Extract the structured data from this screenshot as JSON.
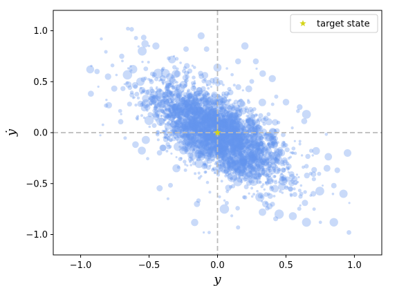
{
  "chart_data": {
    "type": "scatter",
    "xlabel": "y",
    "ylabel": "ẏ",
    "xlim": [
      -1.2,
      1.2
    ],
    "ylim": [
      -1.2,
      1.2
    ],
    "xticks": [
      -1.0,
      -0.5,
      0.0,
      0.5,
      1.0
    ],
    "xtick_labels": [
      "−1.0",
      "−0.5",
      "0.0",
      "0.5",
      "1.0"
    ],
    "yticks": [
      -1.0,
      -0.5,
      0.0,
      0.5,
      1.0
    ],
    "ytick_labels": [
      "−1.0",
      "−0.5",
      "0.0",
      "0.5",
      "1.0"
    ],
    "grid": false,
    "reference_lines": {
      "x": 0.0,
      "y": 0.0,
      "style": "dashed",
      "color": "#bbbbbb"
    },
    "legend_position": "top-right",
    "series": [
      {
        "kind": "point-cloud",
        "color": "#6495ED",
        "opacity": 0.35,
        "center": [
          0.0,
          0.0
        ],
        "approx_correlation": -0.65,
        "x_extent": [
          -0.95,
          1.0
        ],
        "y_extent": [
          -0.95,
          0.95
        ],
        "outlier_points": [
          {
            "x": -0.93,
            "y": 0.62
          },
          {
            "x": -0.88,
            "y": 0.6
          },
          {
            "x": -0.8,
            "y": 0.55
          },
          {
            "x": -0.7,
            "y": 0.75
          },
          {
            "x": -0.55,
            "y": 0.8
          },
          {
            "x": -0.45,
            "y": 0.85
          },
          {
            "x": -0.23,
            "y": 0.82
          },
          {
            "x": -0.12,
            "y": 0.95
          },
          {
            "x": -0.08,
            "y": 0.82
          },
          {
            "x": 0.15,
            "y": 0.7
          },
          {
            "x": 0.2,
            "y": 0.85
          },
          {
            "x": 0.28,
            "y": 0.7
          },
          {
            "x": 0.33,
            "y": 0.58
          },
          {
            "x": 0.4,
            "y": 0.53
          },
          {
            "x": 0.5,
            "y": 0.3
          },
          {
            "x": 0.6,
            "y": 0.25
          },
          {
            "x": 0.65,
            "y": 0.18
          },
          {
            "x": 0.72,
            "y": -0.18
          },
          {
            "x": 0.8,
            "y": -0.35
          },
          {
            "x": 0.85,
            "y": -0.52
          },
          {
            "x": 0.92,
            "y": -0.6
          },
          {
            "x": 0.7,
            "y": -0.6
          },
          {
            "x": 0.65,
            "y": -0.88
          },
          {
            "x": 0.55,
            "y": -0.82
          },
          {
            "x": 0.45,
            "y": -0.8
          },
          {
            "x": 0.35,
            "y": -0.7
          },
          {
            "x": 0.15,
            "y": -0.93
          },
          {
            "x": -0.15,
            "y": -0.7
          },
          {
            "x": 0.05,
            "y": -0.75
          },
          {
            "x": -0.45,
            "y": 0.3
          },
          {
            "x": -0.6,
            "y": 0.45
          },
          {
            "x": -0.5,
            "y": 0.12
          },
          {
            "x": -0.4,
            "y": -0.15
          },
          {
            "x": -0.3,
            "y": -0.35
          },
          {
            "x": 0.95,
            "y": -0.2
          },
          {
            "x": 0.96,
            "y": -0.98
          },
          {
            "x": 0.85,
            "y": -0.88
          }
        ]
      },
      {
        "name": "target state",
        "kind": "marker",
        "marker": "star",
        "color": "#D4D41A",
        "x": 0.0,
        "y": 0.0
      }
    ]
  }
}
